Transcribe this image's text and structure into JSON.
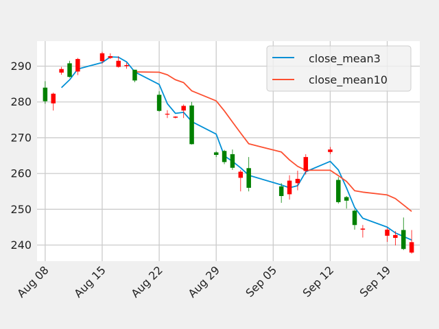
{
  "chart_data": {
    "type": "candlestick",
    "title": "",
    "xlabel": "",
    "ylabel": "",
    "ylim": [
      235.5,
      297
    ],
    "xlim": [
      "2022-08-07",
      "2022-09-23"
    ],
    "grid": true,
    "legend_position": "top-right",
    "colors": {
      "up": "#008000",
      "down": "#ff0000",
      "background": "#f0f0f0",
      "plot_bg": "#ffffff",
      "grid": "#cbcbcb"
    },
    "x_ticks": [
      {
        "date": "2022-08-08",
        "label": "Aug 08"
      },
      {
        "date": "2022-08-15",
        "label": "Aug 15"
      },
      {
        "date": "2022-08-22",
        "label": "Aug 22"
      },
      {
        "date": "2022-08-29",
        "label": "Aug 29"
      },
      {
        "date": "2022-09-05",
        "label": "Sep 05"
      },
      {
        "date": "2022-09-12",
        "label": "Sep 12"
      },
      {
        "date": "2022-09-19",
        "label": "Sep 19"
      }
    ],
    "y_ticks": [
      240,
      250,
      260,
      270,
      280,
      290
    ],
    "candles": [
      {
        "date": "2022-08-08",
        "open": 280.2,
        "high": 285.8,
        "low": 279.5,
        "close": 284.0
      },
      {
        "date": "2022-08-09",
        "open": 282.3,
        "high": 282.6,
        "low": 277.6,
        "close": 279.6
      },
      {
        "date": "2022-08-10",
        "open": 289.2,
        "high": 289.8,
        "low": 287.6,
        "close": 288.2
      },
      {
        "date": "2022-08-11",
        "open": 287.0,
        "high": 291.5,
        "low": 286.8,
        "close": 290.8
      },
      {
        "date": "2022-08-12",
        "open": 292.0,
        "high": 292.3,
        "low": 287.5,
        "close": 288.5
      },
      {
        "date": "2022-08-15",
        "open": 293.6,
        "high": 294.0,
        "low": 290.7,
        "close": 291.4
      },
      {
        "date": "2022-08-16",
        "open": 292.8,
        "high": 293.6,
        "low": 292.0,
        "close": 292.3
      },
      {
        "date": "2022-08-17",
        "open": 291.5,
        "high": 292.8,
        "low": 289.6,
        "close": 289.8
      },
      {
        "date": "2022-08-18",
        "open": 290.3,
        "high": 291.0,
        "low": 289.3,
        "close": 290.0
      },
      {
        "date": "2022-08-19",
        "open": 286.0,
        "high": 289.0,
        "low": 285.5,
        "close": 289.0
      },
      {
        "date": "2022-08-22",
        "open": 277.5,
        "high": 283.0,
        "low": 277.3,
        "close": 282.0
      },
      {
        "date": "2022-08-23",
        "open": 276.7,
        "high": 277.7,
        "low": 275.5,
        "close": 276.5
      },
      {
        "date": "2022-08-24",
        "open": 275.9,
        "high": 276.0,
        "low": 275.4,
        "close": 275.6
      },
      {
        "date": "2022-08-25",
        "open": 278.9,
        "high": 279.3,
        "low": 275.5,
        "close": 277.6
      },
      {
        "date": "2022-08-26",
        "open": 268.2,
        "high": 280.0,
        "low": 268.1,
        "close": 279.0
      },
      {
        "date": "2022-08-29",
        "open": 265.2,
        "high": 266.2,
        "low": 264.6,
        "close": 265.9
      },
      {
        "date": "2022-08-30",
        "open": 263.2,
        "high": 266.6,
        "low": 262.6,
        "close": 266.3
      },
      {
        "date": "2022-08-31",
        "open": 261.6,
        "high": 266.7,
        "low": 261.0,
        "close": 265.4
      },
      {
        "date": "2022-09-01",
        "open": 260.5,
        "high": 261.0,
        "low": 255.0,
        "close": 258.8
      },
      {
        "date": "2022-09-02",
        "open": 256.0,
        "high": 264.6,
        "low": 255.0,
        "close": 261.5
      },
      {
        "date": "2022-09-06",
        "open": 253.7,
        "high": 257.3,
        "low": 251.8,
        "close": 256.4
      },
      {
        "date": "2022-09-07",
        "open": 258.0,
        "high": 259.5,
        "low": 252.7,
        "close": 254.2
      },
      {
        "date": "2022-09-08",
        "open": 258.5,
        "high": 260.8,
        "low": 255.3,
        "close": 257.3
      },
      {
        "date": "2022-09-09",
        "open": 264.6,
        "high": 265.4,
        "low": 259.7,
        "close": 260.7
      },
      {
        "date": "2022-09-12",
        "open": 266.7,
        "high": 267.4,
        "low": 265.4,
        "close": 266.0
      },
      {
        "date": "2022-09-13",
        "open": 252.0,
        "high": 259.0,
        "low": 251.6,
        "close": 258.2
      },
      {
        "date": "2022-09-14",
        "open": 252.4,
        "high": 253.7,
        "low": 250.2,
        "close": 253.4
      },
      {
        "date": "2022-09-15",
        "open": 245.6,
        "high": 250.0,
        "low": 244.3,
        "close": 249.6
      },
      {
        "date": "2022-09-16",
        "open": 244.6,
        "high": 245.6,
        "low": 242.1,
        "close": 244.3
      },
      {
        "date": "2022-09-19",
        "open": 244.3,
        "high": 244.8,
        "low": 240.9,
        "close": 242.6
      },
      {
        "date": "2022-09-20",
        "open": 242.8,
        "high": 243.9,
        "low": 239.9,
        "close": 242.0
      },
      {
        "date": "2022-09-21",
        "open": 238.9,
        "high": 247.7,
        "low": 238.6,
        "close": 244.2
      },
      {
        "date": "2022-09-22",
        "open": 240.8,
        "high": 244.2,
        "low": 237.6,
        "close": 237.9
      }
    ],
    "series": [
      {
        "name": "close_mean3",
        "color": "#008fd5",
        "points": [
          {
            "date": "2022-08-10",
            "value": 284.0
          },
          {
            "date": "2022-08-11",
            "value": 286.2
          },
          {
            "date": "2022-08-12",
            "value": 289.2
          },
          {
            "date": "2022-08-15",
            "value": 291.0
          },
          {
            "date": "2022-08-16",
            "value": 292.6
          },
          {
            "date": "2022-08-17",
            "value": 292.5
          },
          {
            "date": "2022-08-18",
            "value": 291.2
          },
          {
            "date": "2022-08-19",
            "value": 288.4
          },
          {
            "date": "2022-08-22",
            "value": 284.9
          },
          {
            "date": "2022-08-23",
            "value": 279.5
          },
          {
            "date": "2022-08-24",
            "value": 276.8
          },
          {
            "date": "2022-08-25",
            "value": 277.1
          },
          {
            "date": "2022-08-26",
            "value": 274.5
          },
          {
            "date": "2022-08-29",
            "value": 271.0
          },
          {
            "date": "2022-08-30",
            "value": 264.9
          },
          {
            "date": "2022-08-31",
            "value": 263.4
          },
          {
            "date": "2022-09-01",
            "value": 261.6
          },
          {
            "date": "2022-09-02",
            "value": 259.5
          },
          {
            "date": "2022-09-06",
            "value": 256.8
          },
          {
            "date": "2022-09-07",
            "value": 256.0
          },
          {
            "date": "2022-09-08",
            "value": 256.6
          },
          {
            "date": "2022-09-09",
            "value": 260.5
          },
          {
            "date": "2022-09-12",
            "value": 263.4
          },
          {
            "date": "2022-09-13",
            "value": 261.0
          },
          {
            "date": "2022-09-14",
            "value": 256.0
          },
          {
            "date": "2022-09-15",
            "value": 250.5
          },
          {
            "date": "2022-09-16",
            "value": 247.5
          },
          {
            "date": "2022-09-19",
            "value": 245.0
          },
          {
            "date": "2022-09-20",
            "value": 243.4
          },
          {
            "date": "2022-09-21",
            "value": 242.4
          },
          {
            "date": "2022-09-22",
            "value": 241.4
          }
        ]
      },
      {
        "name": "close_mean10",
        "color": "#fc4f30",
        "points": [
          {
            "date": "2022-08-19",
            "value": 288.4
          },
          {
            "date": "2022-08-22",
            "value": 288.3
          },
          {
            "date": "2022-08-23",
            "value": 287.6
          },
          {
            "date": "2022-08-24",
            "value": 286.2
          },
          {
            "date": "2022-08-25",
            "value": 285.4
          },
          {
            "date": "2022-08-26",
            "value": 283.1
          },
          {
            "date": "2022-08-29",
            "value": 280.3
          },
          {
            "date": "2022-08-30",
            "value": 277.5
          },
          {
            "date": "2022-08-31",
            "value": 274.4
          },
          {
            "date": "2022-09-01",
            "value": 271.3
          },
          {
            "date": "2022-09-02",
            "value": 268.3
          },
          {
            "date": "2022-09-06",
            "value": 266.0
          },
          {
            "date": "2022-09-07",
            "value": 263.8
          },
          {
            "date": "2022-09-08",
            "value": 262.0
          },
          {
            "date": "2022-09-09",
            "value": 260.9
          },
          {
            "date": "2022-09-12",
            "value": 260.9
          },
          {
            "date": "2022-09-13",
            "value": 259.4
          },
          {
            "date": "2022-09-14",
            "value": 257.8
          },
          {
            "date": "2022-09-15",
            "value": 255.2
          },
          {
            "date": "2022-09-16",
            "value": 254.8
          },
          {
            "date": "2022-09-19",
            "value": 254.0
          },
          {
            "date": "2022-09-20",
            "value": 253.0
          },
          {
            "date": "2022-09-21",
            "value": 251.2
          },
          {
            "date": "2022-09-22",
            "value": 249.4
          }
        ]
      }
    ]
  }
}
